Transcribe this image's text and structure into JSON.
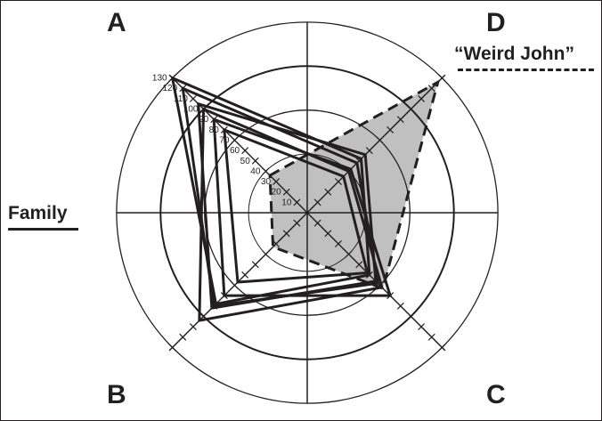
{
  "quadrants": {
    "a": "A",
    "b": "B",
    "c": "C",
    "d": "D"
  },
  "labels": {
    "family": "Family",
    "weird": "“Weird John”"
  },
  "chart_data": {
    "type": "radar",
    "axes": [
      "A",
      "D",
      "C",
      "B"
    ],
    "tick_labels": [
      "10",
      "20",
      "30",
      "40",
      "50",
      "60",
      "70",
      "80",
      "90",
      "100",
      "110",
      "120",
      "130"
    ],
    "range": [
      0,
      130
    ],
    "rings": [
      40,
      70,
      100,
      130
    ],
    "grid": true,
    "family_series": [
      {
        "values": [
          130,
          52,
          60,
          88
        ]
      },
      {
        "values": [
          120,
          48,
          68,
          90
        ]
      },
      {
        "values": [
          105,
          56,
          66,
          92
        ]
      },
      {
        "values": [
          90,
          42,
          80,
          80
        ]
      },
      {
        "values": [
          80,
          35,
          58,
          67
        ]
      },
      {
        "values": [
          100,
          40,
          72,
          104
        ]
      }
    ],
    "weird_series": {
      "values": [
        36,
        126,
        73,
        33
      ]
    },
    "colors": {
      "ink": "#231f20",
      "fill": "#c0c0c0"
    }
  }
}
